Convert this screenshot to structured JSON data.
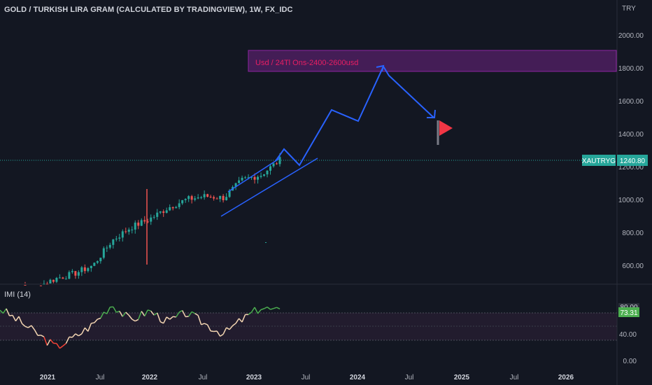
{
  "header": {
    "title": "GOLD / TURKISH LIRA GRAM (CALCULATED BY TRADINGVIEW), 1W, FX_IDC",
    "currency": "TRY"
  },
  "annotation": {
    "box_text": "Usd  /  24Tl  Ons-2400-2600usd"
  },
  "price_tag": {
    "symbol": "XAUTRYG",
    "price": "1240.80"
  },
  "indicator": {
    "title": "IMI (14)",
    "current_value": "73.31",
    "upper_tag": "80.00"
  },
  "colors": {
    "background": "#131722",
    "up": "#26a69a",
    "down": "#ef5350",
    "line": "#2962ff",
    "annotation_text": "#e91e63",
    "box_fill": "#4a1e5c",
    "price_tag": "#26a69a",
    "imi_up": "#4caf50",
    "imi_down": "#f44336",
    "imi_mid": "#f5d7b3",
    "flag": "#f23645"
  },
  "chart_data": [
    {
      "type": "candlestick",
      "title": "GOLD / TURKISH LIRA GRAM (CALCULATED BY TRADINGVIEW), 1W, FX_IDC",
      "y_unit": "TRY",
      "y_ticks": [
        "2000.00",
        "1800.00",
        "1600.00",
        "1400.00",
        "1200.00",
        "1000.00",
        "800.00",
        "600.00"
      ],
      "ylim": [
        500,
        2100
      ],
      "x_ticks": [
        "2021",
        "Jul",
        "2022",
        "Jul",
        "2023",
        "Jul",
        "2024",
        "Jul",
        "2025",
        "Jul",
        "2026"
      ],
      "last_price": 1240.8,
      "candles_approx": [
        {
          "t": "2020-11",
          "close": 460
        },
        {
          "t": "2021-01",
          "close": 465
        },
        {
          "t": "2021-04",
          "close": 470
        },
        {
          "t": "2021-07",
          "close": 520
        },
        {
          "t": "2021-10",
          "close": 550
        },
        {
          "t": "2021-11",
          "close": 600
        },
        {
          "t": "2021-12",
          "close": 750
        },
        {
          "t": "2022-01",
          "close": 830
        },
        {
          "t": "2022-03",
          "close": 880
        },
        {
          "t": "2022-05",
          "close": 950
        },
        {
          "t": "2022-07",
          "close": 1000
        },
        {
          "t": "2022-09",
          "close": 1020
        },
        {
          "t": "2022-11",
          "close": 1010
        },
        {
          "t": "2023-01",
          "close": 1120
        },
        {
          "t": "2023-03",
          "close": 1150
        },
        {
          "t": "2023-05",
          "close": 1240
        }
      ],
      "drawings": {
        "projection_path_prices": [
          1310,
          1210,
          1550,
          1480,
          1820,
          1490
        ],
        "channel_upper": [
          [
            1040,
            2022.7
          ],
          [
            1250,
            2023.4
          ]
        ],
        "channel_lower": [
          [
            900,
            2022.7
          ],
          [
            1250,
            2023.6
          ]
        ],
        "target_box_prices": [
          1780,
          1910
        ]
      }
    },
    {
      "type": "line",
      "title": "IMI (14)",
      "y_ticks": [
        "80.00",
        "40.00",
        "0.00"
      ],
      "ylim": [
        0,
        100
      ],
      "current_value": 73.31,
      "bands": [
        30,
        70
      ]
    }
  ]
}
